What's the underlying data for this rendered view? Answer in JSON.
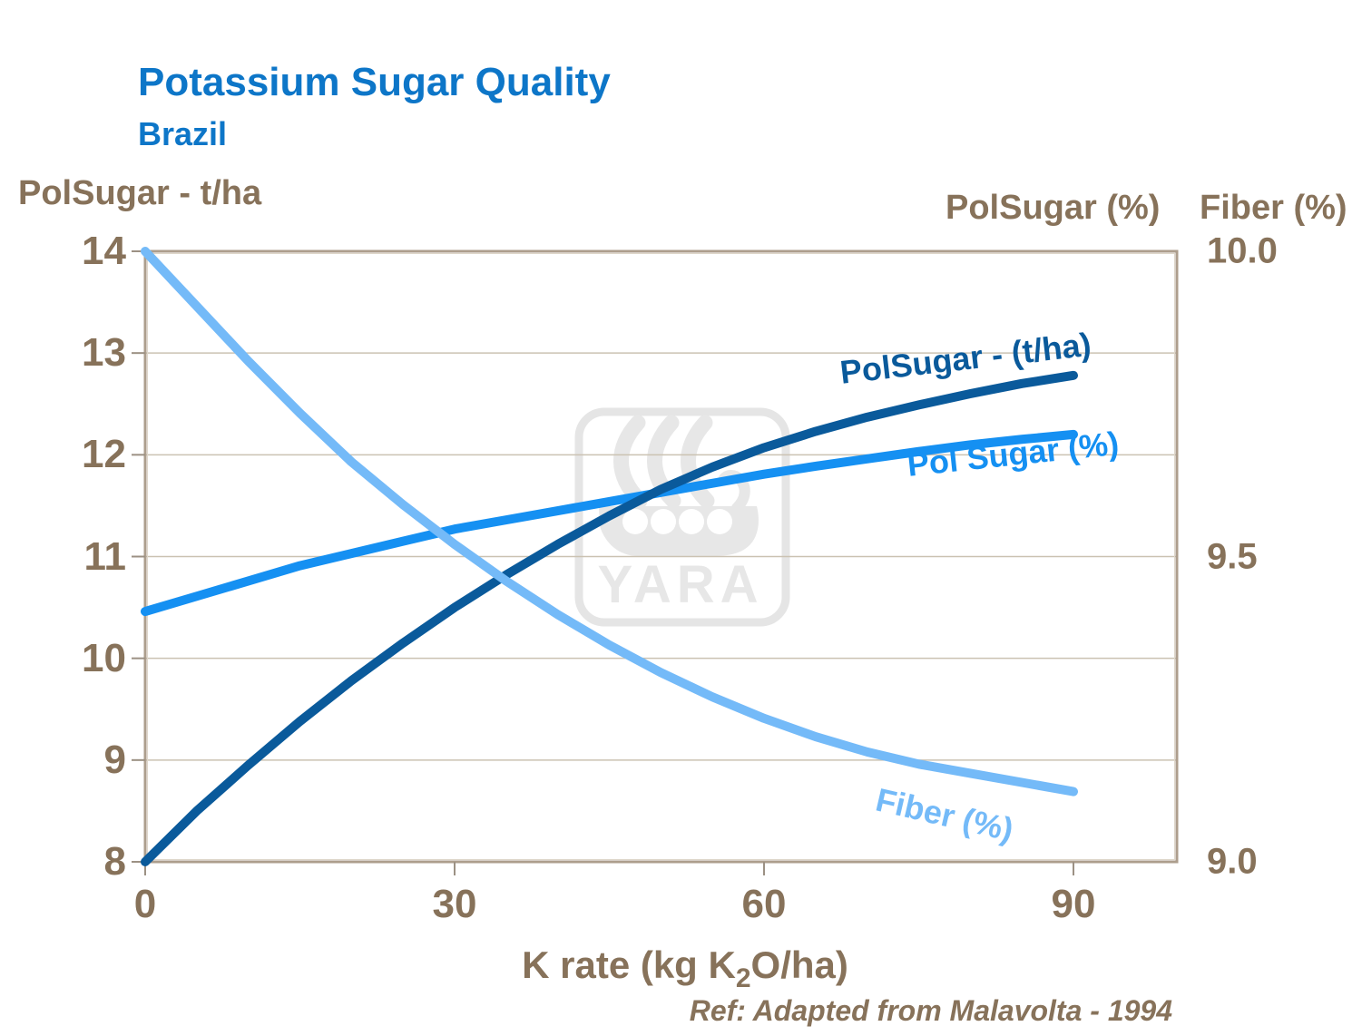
{
  "slide": {
    "title": "Potassium Sugar Quality",
    "subtitle": "Brazil",
    "reference": "Ref: Adapted from Malavolta - 1994",
    "watermark_text": "YARA"
  },
  "axes": {
    "left": {
      "title": "PolSugar - t/ha",
      "ticks": [
        "14",
        "13",
        "12",
        "11",
        "10",
        "9",
        "8"
      ]
    },
    "right": {
      "title_polsugar": "PolSugar (%)",
      "title_fiber": "Fiber (%)",
      "ticks": [
        "10.0",
        "9.5",
        "9.0"
      ]
    },
    "x": {
      "ticks": [
        "0",
        "30",
        "60",
        "90"
      ],
      "title_prefix": "K rate (kg K",
      "title_subscript": "2",
      "title_suffix": "O/ha)"
    }
  },
  "colors": {
    "title_blue": "#0d76c8",
    "text_brown": "#87725a",
    "polsugar_tha": "#0a5a9b",
    "polsugar_pct": "#1590f2",
    "fiber_pct": "#74baf8",
    "gridline": "#cbc2b2",
    "plot_border": "#ad9e8d",
    "tick": "#9c9184",
    "watermark": "#e7e7e7"
  },
  "chart_data": {
    "type": "line",
    "title": "Potassium Sugar Quality - Brazil",
    "xlabel": "K rate (kg K2O/ha)",
    "grid": "horizontal",
    "x": [
      0,
      5,
      10,
      15,
      20,
      25,
      30,
      35,
      40,
      45,
      50,
      55,
      60,
      65,
      70,
      75,
      80,
      85,
      90
    ],
    "x_ticks": [
      0,
      30,
      60,
      90
    ],
    "x_axis_range": [
      0,
      100
    ],
    "left_axis": {
      "label": "PolSugar - t/ha",
      "range": [
        8,
        14
      ],
      "ticks": [
        14,
        13,
        12,
        11,
        10,
        9,
        8
      ]
    },
    "right_axis": {
      "labels": [
        "PolSugar (%)",
        "Fiber (%)"
      ],
      "range": [
        9.0,
        10.0
      ],
      "ticks": [
        10.0,
        9.5,
        9.0
      ]
    },
    "series": [
      {
        "name": "PolSugar - (t/ha)",
        "axis": "left",
        "color": "#0a5a9b",
        "values": [
          8.0,
          8.5,
          8.95,
          9.38,
          9.78,
          10.15,
          10.5,
          10.82,
          11.12,
          11.4,
          11.66,
          11.88,
          12.07,
          12.23,
          12.37,
          12.49,
          12.6,
          12.7,
          12.78
        ]
      },
      {
        "name": "Pol Sugar (%)",
        "axis": "right",
        "color": "#1590f2",
        "values": [
          9.41,
          9.435,
          9.46,
          9.485,
          9.505,
          9.525,
          9.545,
          9.56,
          9.575,
          9.59,
          9.605,
          9.62,
          9.635,
          9.648,
          9.66,
          9.672,
          9.683,
          9.692,
          9.7
        ]
      },
      {
        "name": "Fiber (%)",
        "axis": "right",
        "color": "#74baf8",
        "values": [
          10.0,
          9.91,
          9.82,
          9.735,
          9.655,
          9.585,
          9.52,
          9.46,
          9.405,
          9.355,
          9.31,
          9.27,
          9.235,
          9.205,
          9.18,
          9.16,
          9.145,
          9.13,
          9.115
        ]
      }
    ]
  }
}
